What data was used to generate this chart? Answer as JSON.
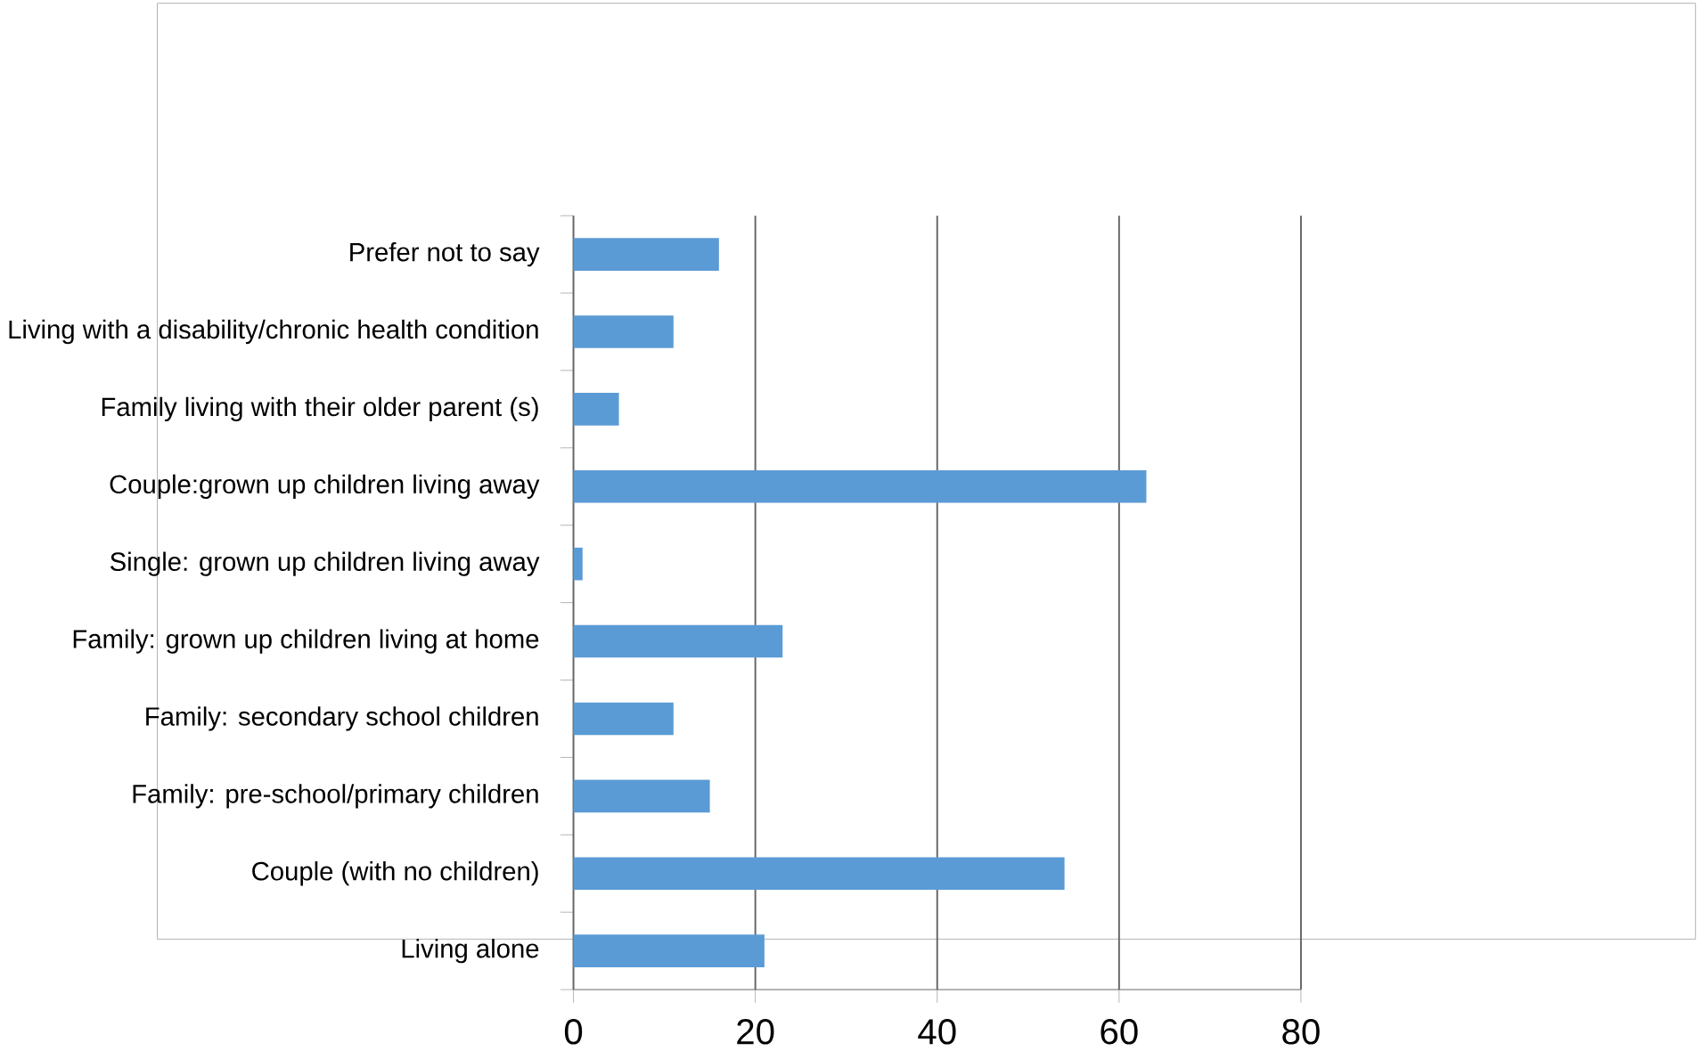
{
  "chart_data": {
    "type": "bar",
    "orientation": "horizontal",
    "categories": [
      "Prefer not to say",
      "Living with a disability/chronic health condition",
      "Family living with their older parent (s)",
      "Couple:grown up children living away",
      "Single: grown up children living away",
      "Family: grown up children living at home",
      "Family: secondary school children",
      "Family: pre-school/primary children",
      "Couple (with no children)",
      "Living alone"
    ],
    "values": [
      16,
      11,
      5,
      63,
      1,
      23,
      11,
      15,
      54,
      21
    ],
    "color": "#5b9bd5",
    "xlim": [
      0,
      80
    ],
    "xticks": [
      0,
      20,
      40,
      60,
      80
    ],
    "grid": "x"
  }
}
